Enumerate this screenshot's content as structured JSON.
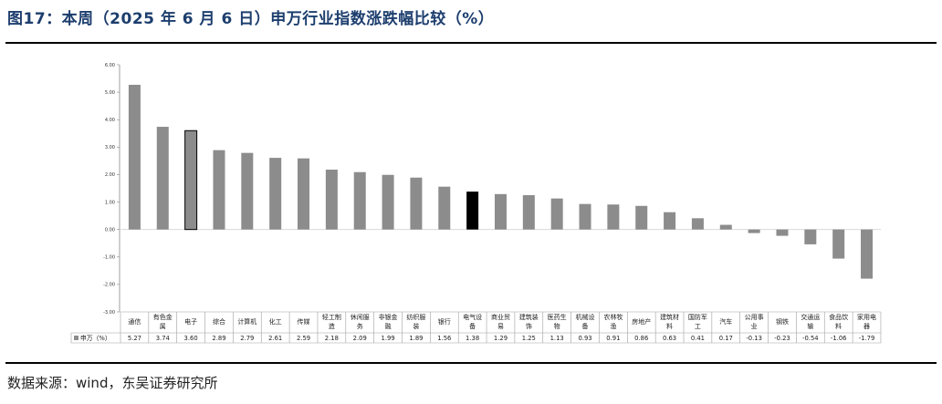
{
  "title": "图17：本周（2025 年 6 月 6 日）申万行业指数涨跌幅比较（%）",
  "source": "数据来源：wind，东吴证券研究所",
  "chart_data": {
    "type": "bar",
    "categories": [
      "通信",
      "有色金属",
      "电子",
      "综合",
      "计算机",
      "化工",
      "传媒",
      "轻工制造",
      "休闲服务",
      "非银金融",
      "纺织服装",
      "银行",
      "电气设备",
      "商业贸易",
      "建筑装饰",
      "医药生物",
      "机械设备",
      "农林牧渔",
      "房地产",
      "建筑材料",
      "国防军工",
      "汽车",
      "公用事业",
      "钢铁",
      "交通运输",
      "食品饮料",
      "家用电器"
    ],
    "category_lines": [
      [
        "通信"
      ],
      [
        "有色金",
        "属"
      ],
      [
        "电子"
      ],
      [
        "综合"
      ],
      [
        "计算机"
      ],
      [
        "化工"
      ],
      [
        "传媒"
      ],
      [
        "轻工制",
        "造"
      ],
      [
        "休闲服",
        "务"
      ],
      [
        "非银金",
        "融"
      ],
      [
        "纺织服",
        "装"
      ],
      [
        "银行"
      ],
      [
        "电气设",
        "备"
      ],
      [
        "商业贸",
        "易"
      ],
      [
        "建筑装",
        "饰"
      ],
      [
        "医药生",
        "物"
      ],
      [
        "机械设",
        "备"
      ],
      [
        "农林牧",
        "渔"
      ],
      [
        "房地产"
      ],
      [
        "建筑材",
        "料"
      ],
      [
        "国防军",
        "工"
      ],
      [
        "汽车"
      ],
      [
        "公用事",
        "业"
      ],
      [
        "钢铁"
      ],
      [
        "交通运",
        "输"
      ],
      [
        "食品饮",
        "料"
      ],
      [
        "家用电",
        "器"
      ]
    ],
    "series": [
      {
        "name": "申万（%）",
        "values": [
          5.27,
          3.74,
          3.6,
          2.89,
          2.79,
          2.61,
          2.59,
          2.18,
          2.09,
          1.99,
          1.89,
          1.56,
          1.38,
          1.29,
          1.25,
          1.13,
          0.93,
          0.91,
          0.86,
          0.63,
          0.41,
          0.17,
          -0.13,
          -0.23,
          -0.54,
          -1.06,
          -1.79
        ]
      }
    ],
    "value_labels": [
      "5.27",
      "3.74",
      "3.60",
      "2.89",
      "2.79",
      "2.61",
      "2.59",
      "2.18",
      "2.09",
      "1.99",
      "1.89",
      "1.56",
      "1.38",
      "1.29",
      "1.25",
      "1.13",
      "0.93",
      "0.91",
      "0.86",
      "0.63",
      "0.41",
      "0.17",
      "-0.13",
      "-0.23",
      "-0.54",
      "-1.06",
      "-1.79"
    ],
    "yticks": [
      "6.00",
      "5.00",
      "4.00",
      "3.00",
      "2.00",
      "1.00",
      "0.00",
      "-1.00",
      "-2.00",
      "-3.00"
    ],
    "ylim": [
      -3,
      6
    ],
    "highlight_outline": "电子",
    "highlight_solid": "电气设备",
    "colors": {
      "bar": "#8c8c8c",
      "highlight_solid": "#000000",
      "outline_fill": "#8c8c8c",
      "outline_stroke": "#000000",
      "grid": "#d9d9d9",
      "table_border": "#a0a0a0"
    },
    "grid": false,
    "legend_location": "table-bottom-left"
  }
}
